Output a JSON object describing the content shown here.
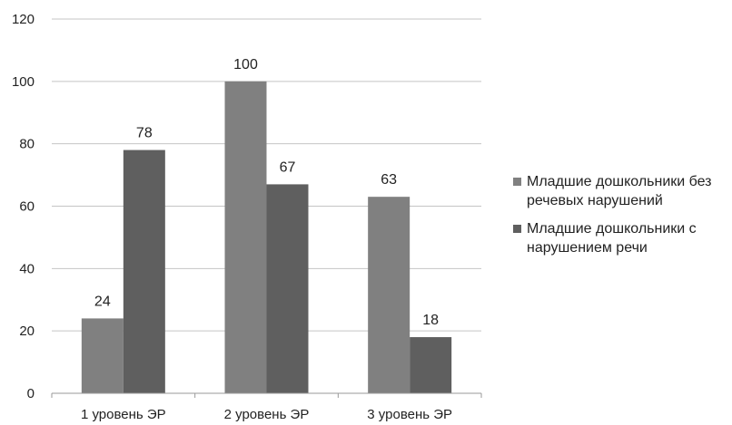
{
  "chart_data": {
    "type": "bar",
    "categories": [
      "1 уровень ЭР",
      "2 уровень ЭР",
      "3 уровень ЭР"
    ],
    "series": [
      {
        "name": "Младшие дошкольники без речевых нарушений",
        "values": [
          24,
          100,
          63
        ],
        "color": "#808080"
      },
      {
        "name": "Младшие дошкольники с нарушением речи",
        "values": [
          78,
          67,
          18
        ],
        "color": "#5f5f5f"
      }
    ],
    "y_ticks": [
      "0",
      "20",
      "40",
      "60",
      "80",
      "100",
      "120"
    ],
    "ylim": [
      0,
      120
    ],
    "grid": true,
    "legend_position": "right",
    "title": "",
    "xlabel": "",
    "ylabel": ""
  }
}
